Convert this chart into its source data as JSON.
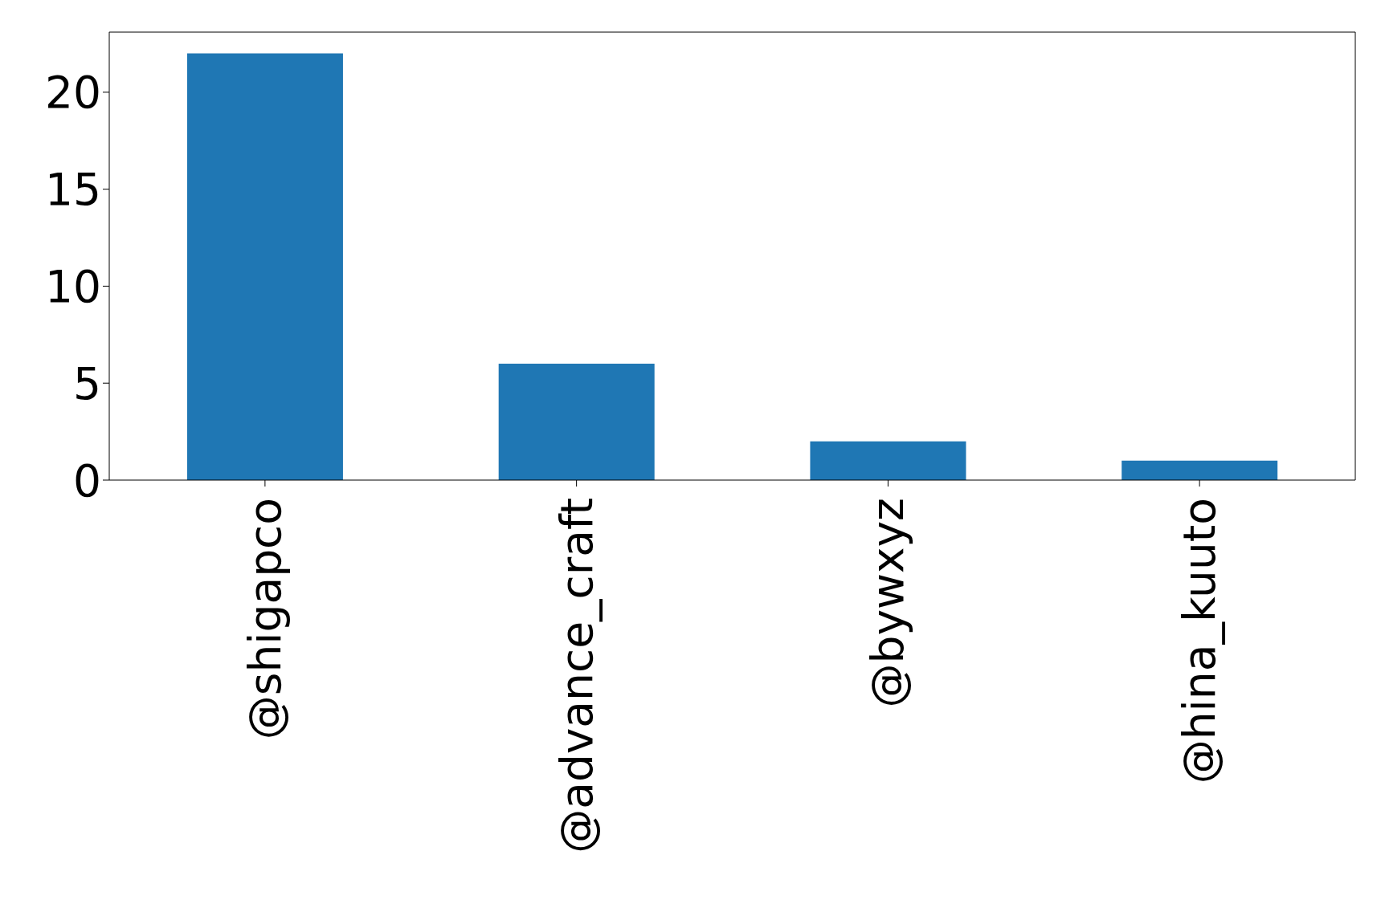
{
  "chart_data": {
    "type": "bar",
    "categories": [
      "@shigapco",
      "@advance_craft",
      "@bywxyz",
      "@hina_kuuto"
    ],
    "values": [
      22,
      6,
      2,
      1
    ],
    "color": "#1f77b4",
    "ylim": [
      0,
      23.1
    ],
    "yticks": [
      0,
      5,
      10,
      15,
      20
    ],
    "grid": false
  }
}
